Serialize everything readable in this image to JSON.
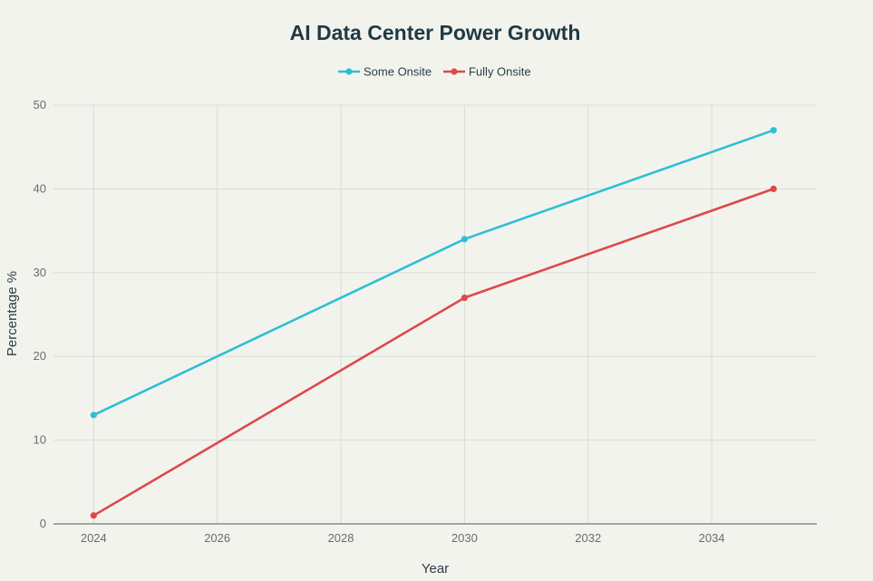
{
  "chart_data": {
    "type": "line",
    "title": "AI Data Center Power Growth",
    "xlabel": "Year",
    "ylabel": "Percentage %",
    "xlim": [
      2023.35,
      2035.7
    ],
    "ylim": [
      0,
      50
    ],
    "x_ticks": [
      2024,
      2026,
      2028,
      2030,
      2032,
      2034
    ],
    "y_ticks": [
      0,
      10,
      20,
      30,
      40,
      50
    ],
    "grid": true,
    "legend_position": "top-center",
    "series": [
      {
        "name": "Some Onsite",
        "color": "#2ebfd4",
        "x": [
          2024,
          2030,
          2035
        ],
        "y": [
          13,
          34,
          47
        ]
      },
      {
        "name": "Fully Onsite",
        "color": "#dc4a4a",
        "x": [
          2024,
          2030,
          2035
        ],
        "y": [
          1,
          27,
          40
        ]
      }
    ]
  }
}
